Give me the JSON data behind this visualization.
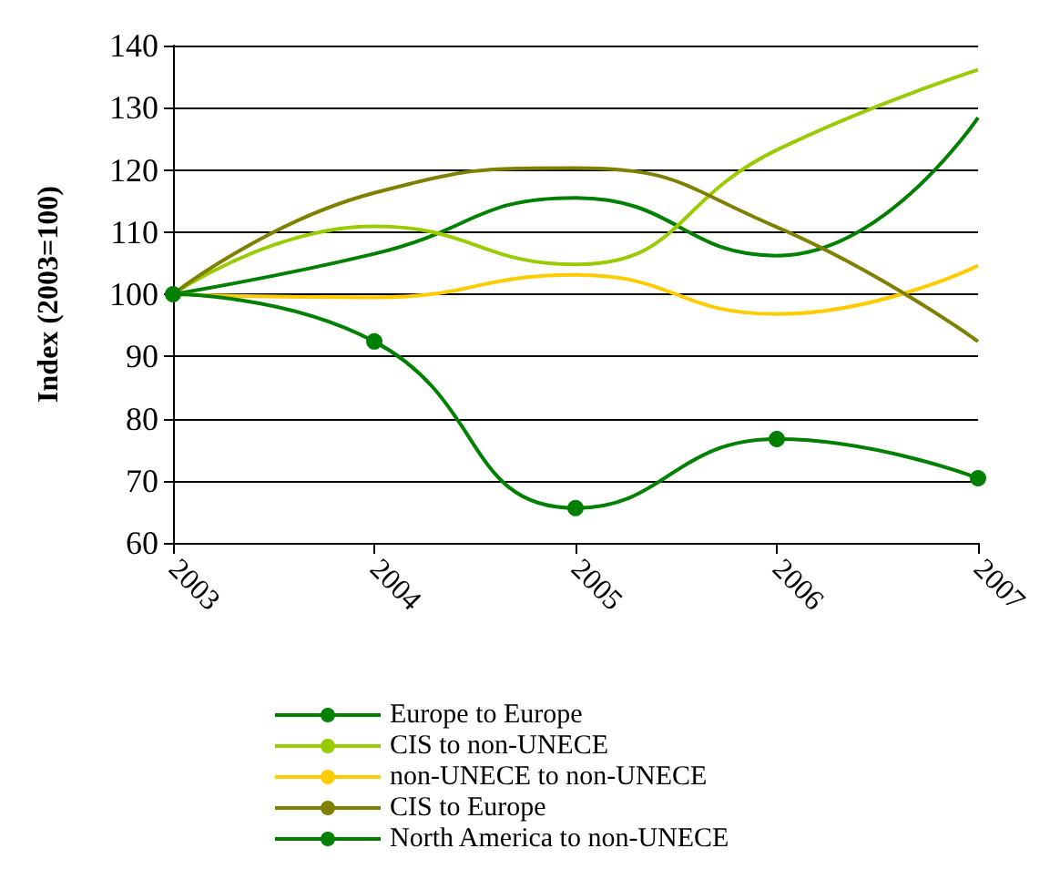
{
  "chart_data": {
    "type": "line",
    "ylabel": "Index (2003=100)",
    "categories": [
      "2003",
      "2004",
      "2005",
      "2006",
      "2007"
    ],
    "series": [
      {
        "name": "Europe to Europe",
        "color": "#008000",
        "values": [
          100,
          106.5,
          115.5,
          106.2,
          128.4
        ]
      },
      {
        "name": "CIS to non-UNECE",
        "color": "#99cc00",
        "values": [
          100,
          110.9,
          104.8,
          123.2,
          136.1
        ]
      },
      {
        "name": "non-UNECE to non-UNECE",
        "color": "#ffcc00",
        "values": [
          100,
          99.5,
          103.1,
          96.8,
          104.6
        ]
      },
      {
        "name": "CIS to Europe",
        "color": "#808000",
        "values": [
          100,
          116.3,
          120.3,
          110.8,
          92.4
        ]
      },
      {
        "name": "North America to non-UNECE",
        "color": "#008000",
        "marker": "circle",
        "values": [
          100,
          92.4,
          65.6,
          76.7,
          70.4
        ]
      }
    ],
    "ylim": [
      60,
      140
    ],
    "yticks": [
      60,
      70,
      80,
      90,
      100,
      110,
      120,
      130,
      140
    ],
    "grid": "y",
    "legend": "bottom",
    "marker": "none",
    "line_style": "solid"
  }
}
